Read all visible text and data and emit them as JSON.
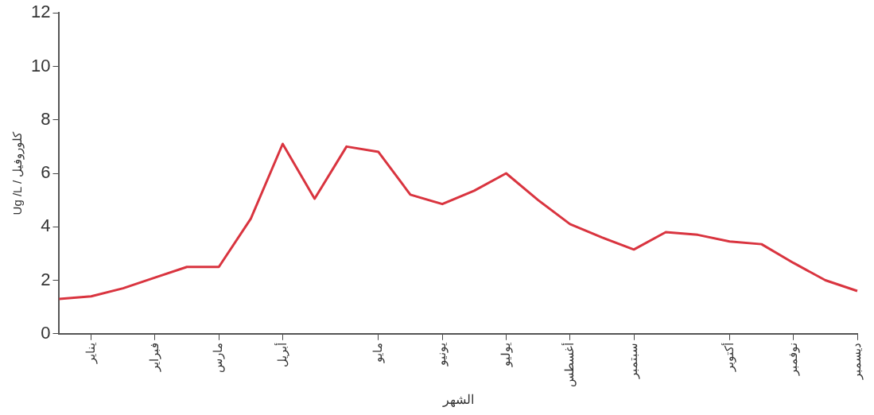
{
  "chart_data": {
    "type": "line",
    "xlabel": "الشهر",
    "ylabel": "Ug /L / كلوروفيل",
    "categories": [
      null,
      "يناير",
      null,
      "فبراير",
      null,
      "مارس",
      null,
      "أبريل",
      null,
      null,
      "مايو",
      null,
      "يونيو",
      null,
      "يوليو",
      null,
      "أغسطس",
      null,
      "سبتمبر",
      null,
      null,
      "أكتوبر",
      null,
      "نوفمبر",
      null,
      "ديسمبر"
    ],
    "series": [
      {
        "color": "#d9343f",
        "values": [
          1.3,
          1.4,
          1.7,
          2.1,
          2.5,
          2.5,
          4.3,
          7.1,
          5.05,
          7.0,
          6.8,
          5.2,
          4.85,
          5.35,
          6.0,
          5.0,
          4.1,
          3.6,
          3.15,
          3.8,
          3.7,
          3.45,
          3.35,
          2.65,
          2.0,
          1.6
        ]
      }
    ],
    "ylim": [
      0,
      12
    ],
    "yticks": [
      0,
      2,
      4,
      6,
      8,
      10,
      12
    ],
    "grid": false,
    "legend": false,
    "marker": "none",
    "line_style": "solid"
  }
}
